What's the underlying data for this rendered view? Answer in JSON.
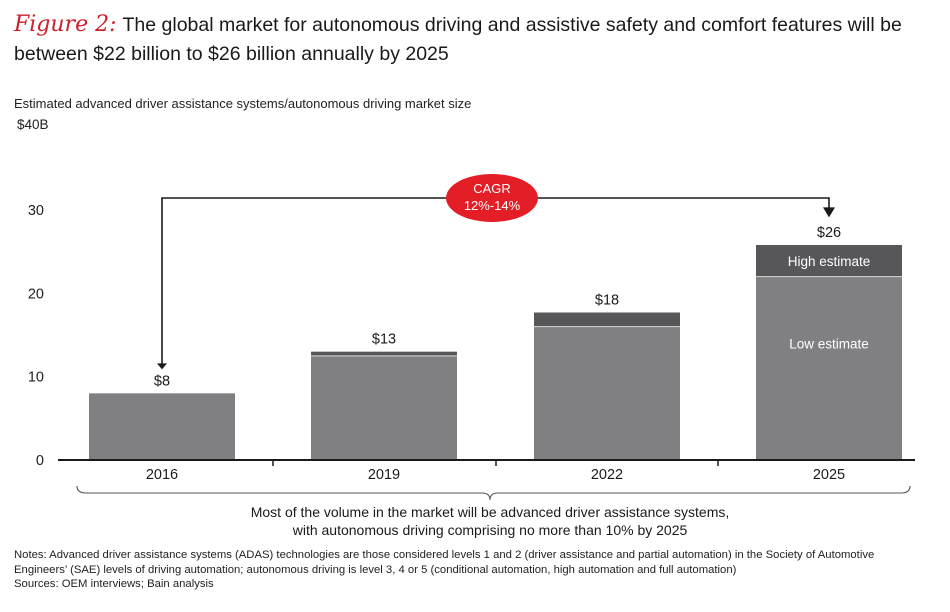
{
  "figure": {
    "label": "Figure 2:",
    "title": "The global market for autonomous driving and assistive safety and comfort features will be between $22 billion to $26 billion annually by 2025",
    "subtitle": "Estimated advanced driver assistance systems/autonomous driving market size"
  },
  "chart_data": {
    "type": "bar",
    "stacked": true,
    "y_unit_label": "$40B",
    "categories": [
      "2016",
      "2019",
      "2022",
      "2025"
    ],
    "series": [
      {
        "name": "Low estimate",
        "values": [
          8,
          12.5,
          16,
          22
        ],
        "color": "#808083"
      },
      {
        "name": "High estimate",
        "values": [
          0,
          0.5,
          1.7,
          3.8
        ],
        "color": "#57575a"
      }
    ],
    "totals": [
      8,
      13,
      18,
      26
    ],
    "total_labels": [
      "$8",
      "$13",
      "$18",
      "$26"
    ],
    "ylim": [
      0,
      40
    ],
    "yticks": [
      0,
      10,
      20,
      30
    ],
    "segment_labels": {
      "high": "High estimate",
      "low": "Low estimate"
    },
    "cagr": {
      "line1": "CAGR",
      "line2": "12%-14%",
      "color": "#e31e26"
    },
    "bracket_note_line1": "Most of the volume in the market will be advanced driver assistance systems,",
    "bracket_note_line2": "with autonomous driving comprising no more than 10% by 2025"
  },
  "notes": {
    "line1": "Notes: Advanced driver assistance systems (ADAS) technologies are those considered levels 1 and 2 (driver assistance and partial automation) in the Society of Automotive",
    "line2": "Engineers’ (SAE) levels of driving automation; autonomous driving is level 3, 4 or 5 (conditional automation, high automation and full automation)",
    "line3": "Sources: OEM interviews; Bain analysis"
  }
}
